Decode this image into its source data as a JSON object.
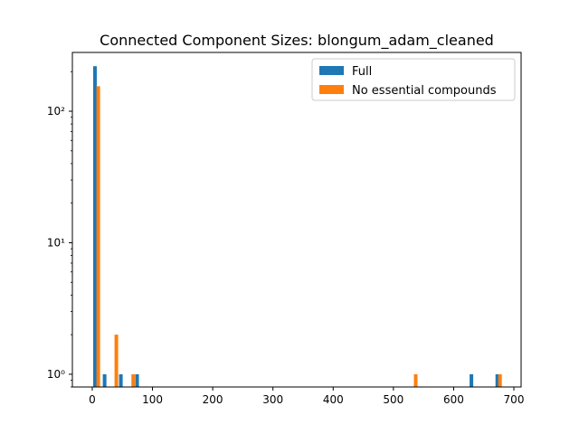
{
  "chart_data": {
    "type": "bar",
    "title": "Connected Component Sizes: blongum_adam_cleaned",
    "xlabel": "",
    "ylabel": "",
    "yscale": "log",
    "xlim": [
      -33,
      712
    ],
    "ylim": [
      0.8,
      280
    ],
    "x_ticks": [
      0,
      100,
      200,
      300,
      400,
      500,
      600,
      700
    ],
    "y_ticks": [
      {
        "value": 1,
        "label": "10⁰"
      },
      {
        "value": 10,
        "label": "10¹"
      },
      {
        "value": 100,
        "label": "10²"
      }
    ],
    "grid": false,
    "legend_position": "top-right",
    "series": [
      {
        "name": "Full",
        "color": "#1f77b4",
        "bars": [
          {
            "x": 4.5,
            "value": 220
          },
          {
            "x": 20.5,
            "value": 1
          },
          {
            "x": 47.5,
            "value": 1
          },
          {
            "x": 74.5,
            "value": 1
          },
          {
            "x": 629.5,
            "value": 1
          },
          {
            "x": 672.5,
            "value": 1
          }
        ]
      },
      {
        "name": "No essential compounds",
        "color": "#ff7f0e",
        "bars": [
          {
            "x": 10,
            "value": 155
          },
          {
            "x": 40,
            "value": 2
          },
          {
            "x": 68,
            "value": 1
          },
          {
            "x": 537,
            "value": 1
          },
          {
            "x": 677,
            "value": 1
          }
        ]
      }
    ]
  }
}
